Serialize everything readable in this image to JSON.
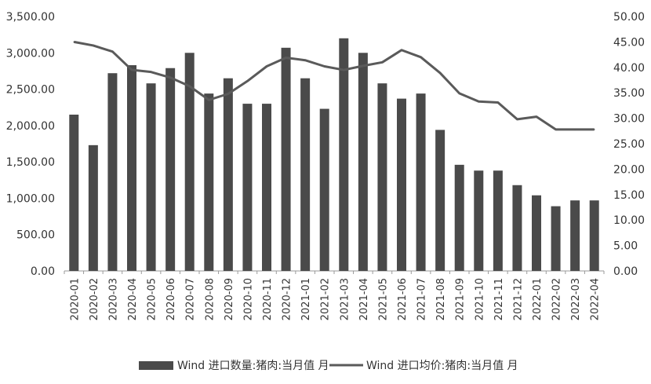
{
  "chart_data": {
    "type": "bar",
    "categories": [
      "2020-01",
      "2020-02",
      "2020-03",
      "2020-04",
      "2020-05",
      "2020-06",
      "2020-07",
      "2020-08",
      "2020-09",
      "2020-10",
      "2020-11",
      "2020-12",
      "2021-01",
      "2021-02",
      "2021-03",
      "2021-04",
      "2021-05",
      "2021-06",
      "2021-07",
      "2021-08",
      "2021-09",
      "2021-10",
      "2021-11",
      "2021-12",
      "2022-01",
      "2022-02",
      "2022-03",
      "2022-04"
    ],
    "series": [
      {
        "name": "Wind 进口数量:猪肉:当月值 月",
        "type": "bar",
        "axis": "left",
        "color": "#4a4a4a",
        "values": [
          2150,
          1730,
          2720,
          2830,
          2580,
          2790,
          3000,
          2440,
          2650,
          2300,
          2300,
          3070,
          2650,
          2230,
          3200,
          3000,
          2580,
          2370,
          2440,
          1940,
          1460,
          1380,
          1380,
          1180,
          1040,
          890,
          970,
          970
        ]
      },
      {
        "name": "Wind 进口均价:猪肉:当月值 月",
        "type": "line",
        "axis": "right",
        "color": "#5a5a5a",
        "values": [
          45.0,
          44.3,
          43.1,
          39.5,
          39.1,
          38.0,
          36.3,
          33.6,
          34.8,
          37.3,
          40.2,
          41.9,
          41.4,
          40.2,
          39.5,
          40.3,
          41.0,
          43.4,
          42.0,
          38.9,
          34.9,
          33.3,
          33.1,
          29.8,
          30.3,
          27.8,
          27.8,
          27.8
        ]
      }
    ],
    "y_left": {
      "min": 0,
      "max": 3500,
      "ticks": [
        "0.00",
        "500.00",
        "1,000.00",
        "1,500.00",
        "2,000.00",
        "2,500.00",
        "3,000.00",
        "3,500.00"
      ]
    },
    "y_right": {
      "min": 0,
      "max": 50,
      "ticks": [
        "0.00",
        "5.00",
        "10.00",
        "15.00",
        "20.00",
        "25.00",
        "30.00",
        "35.00",
        "40.00",
        "45.00",
        "50.00"
      ]
    },
    "title": "",
    "xlabel": "",
    "ylabel": "",
    "grid": false,
    "legend": "bottom"
  }
}
